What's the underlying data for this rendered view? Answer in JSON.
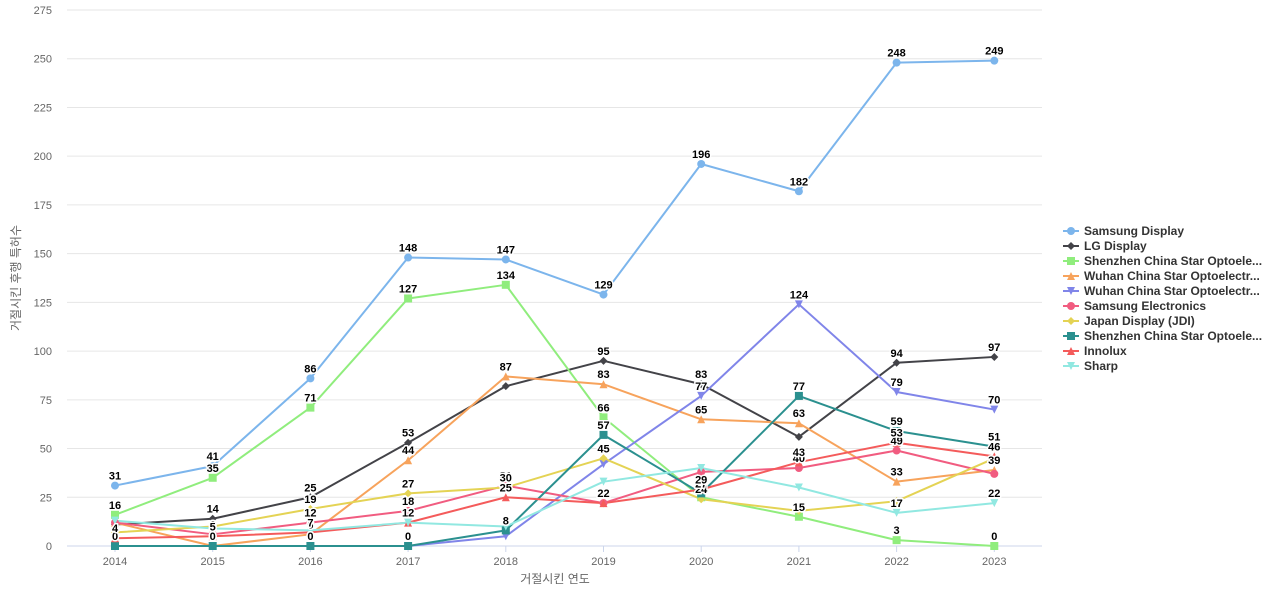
{
  "chart_data": {
    "type": "line",
    "title": "",
    "xlabel": "거절시킨 연도",
    "ylabel": "거절시킨 후행 특허수",
    "x": [
      "2014",
      "2015",
      "2016",
      "2017",
      "2018",
      "2019",
      "2020",
      "2021",
      "2022",
      "2023"
    ],
    "ylim": [
      0,
      275
    ],
    "yticks": [
      0,
      25,
      50,
      75,
      100,
      125,
      150,
      175,
      200,
      225,
      250,
      275
    ],
    "grid": true,
    "legend_position": "right",
    "series": [
      {
        "name": "Samsung Display",
        "color": "#7cb5ec",
        "marker": "circle",
        "values": [
          31,
          41,
          86,
          148,
          147,
          129,
          196,
          182,
          248,
          249
        ]
      },
      {
        "name": "LG Display",
        "color": "#434348",
        "marker": "diamond",
        "values": [
          11,
          14,
          25,
          53,
          82,
          95,
          83,
          56,
          94,
          97
        ]
      },
      {
        "name": "Shenzhen China Star Optoele...",
        "color": "#90ed7d",
        "marker": "square",
        "values": [
          16,
          35,
          71,
          127,
          134,
          66,
          25,
          15,
          3,
          0
        ]
      },
      {
        "name": "Wuhan China Star Optoelectr...",
        "color": "#f7a35c",
        "marker": "triangle",
        "values": [
          12,
          0,
          6,
          44,
          87,
          83,
          65,
          63,
          33,
          39
        ]
      },
      {
        "name": "Wuhan China Star Optoelectr...",
        "color": "#8085e9",
        "marker": "triangle-down",
        "values": [
          0,
          0,
          0,
          0,
          5,
          42,
          77,
          124,
          79,
          70
        ]
      },
      {
        "name": "Samsung Electronics",
        "color": "#f15c80",
        "marker": "circle",
        "values": [
          12,
          6,
          12,
          18,
          31,
          22,
          38,
          40,
          49,
          37
        ]
      },
      {
        "name": "Japan Display (JDI)",
        "color": "#e4d354",
        "marker": "diamond",
        "values": [
          7,
          10,
          19,
          27,
          30,
          45,
          24,
          18,
          23,
          45
        ]
      },
      {
        "name": "Shenzhen China Star Optoele...",
        "color": "#2b908f",
        "marker": "square",
        "values": [
          0,
          0,
          0,
          0,
          8,
          57,
          27,
          77,
          59,
          51
        ]
      },
      {
        "name": "Innolux",
        "color": "#f45b5b",
        "marker": "triangle",
        "values": [
          4,
          5,
          7,
          12,
          25,
          22,
          29,
          43,
          53,
          46
        ]
      },
      {
        "name": "Sharp",
        "color": "#91e8e1",
        "marker": "triangle-down",
        "values": [
          13,
          9,
          8,
          12,
          10,
          33,
          40,
          30,
          17,
          22
        ]
      }
    ],
    "data_labels": [
      {
        "series": 0,
        "points": [
          0,
          1,
          2,
          3,
          4,
          5,
          6,
          7,
          8,
          9
        ]
      },
      {
        "series": 1,
        "points": [
          1,
          2,
          3,
          5,
          6,
          8,
          9
        ]
      },
      {
        "series": 2,
        "points": [
          0,
          1,
          2,
          3,
          4,
          5,
          7,
          8,
          9
        ]
      },
      {
        "series": 3,
        "points": [
          1,
          2,
          3,
          4,
          5,
          6,
          7,
          8,
          9
        ]
      },
      {
        "series": 4,
        "points": [
          6,
          7,
          8,
          9
        ]
      },
      {
        "series": 5,
        "points": [
          1,
          2,
          3,
          4,
          5,
          7,
          8
        ]
      },
      {
        "series": 6,
        "points": [
          2,
          3,
          4,
          5,
          6
        ]
      },
      {
        "series": 7,
        "points": [
          0,
          1,
          2,
          3,
          4,
          5,
          6,
          7,
          8,
          9
        ]
      },
      {
        "series": 8,
        "points": [
          0,
          1,
          2,
          3,
          4,
          5,
          6,
          7,
          8,
          9
        ]
      },
      {
        "series": 9,
        "points": [
          8,
          9
        ]
      }
    ]
  }
}
